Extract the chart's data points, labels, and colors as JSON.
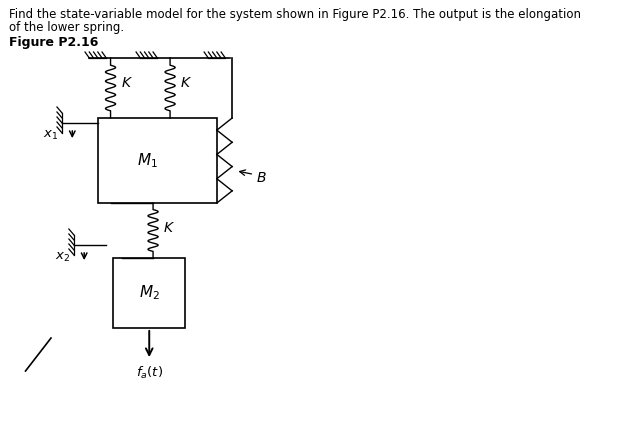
{
  "title_line1": "Find the state-variable model for the system shown in Figure P2.16. The output is the elongation",
  "title_line2": "of the lower spring.",
  "fig_label": "Figure P2.16",
  "bg_color": "#ffffff",
  "text_color": "#000000",
  "line_color": "#000000"
}
